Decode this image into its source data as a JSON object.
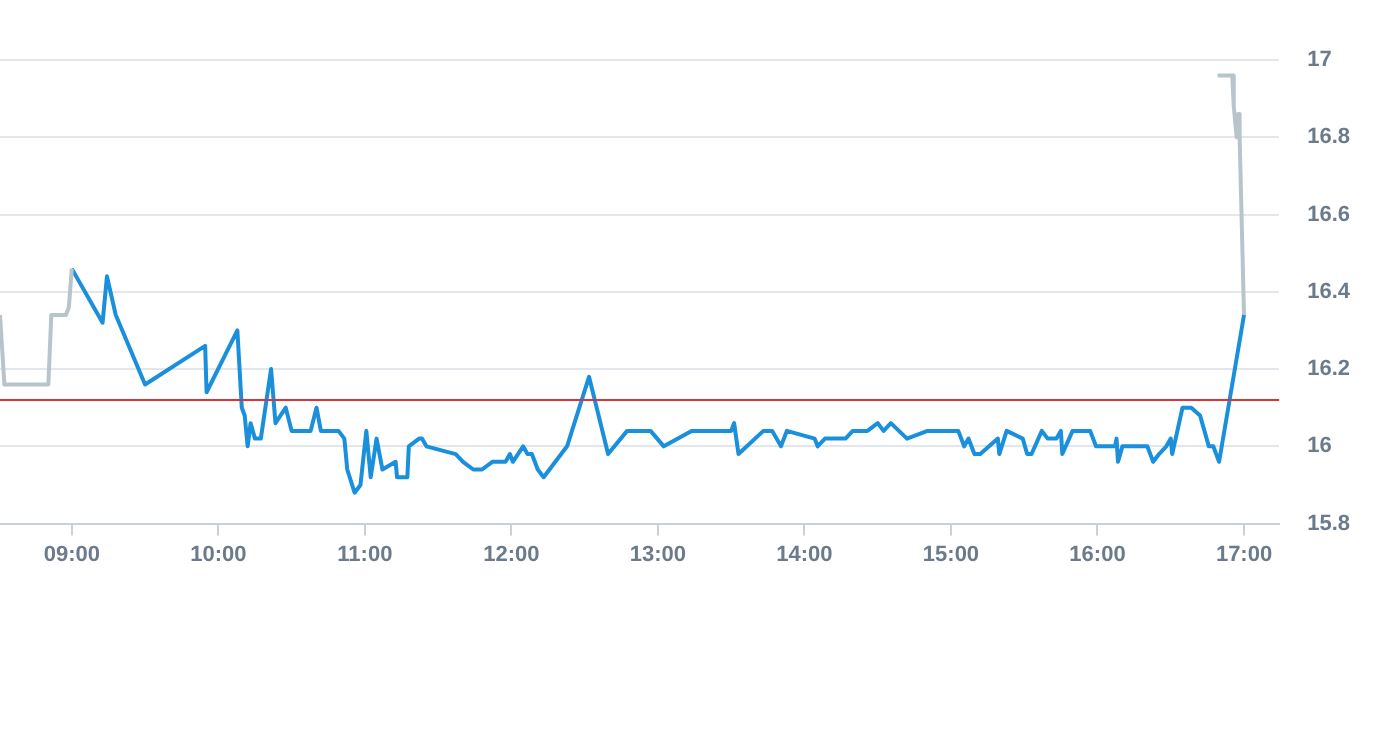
{
  "chart_data": {
    "type": "line",
    "marker": "none",
    "grid": "y",
    "legend": false,
    "xlim": [
      8.51,
      17.24
    ],
    "xticks": [
      {
        "value": 9,
        "label": "09:00"
      },
      {
        "value": 10,
        "label": "10:00"
      },
      {
        "value": 11,
        "label": "11:00"
      },
      {
        "value": 12,
        "label": "12:00"
      },
      {
        "value": 13,
        "label": "13:00"
      },
      {
        "value": 14,
        "label": "14:00"
      },
      {
        "value": 15,
        "label": "15:00"
      },
      {
        "value": 16,
        "label": "16:00"
      },
      {
        "value": 17,
        "label": "17:00"
      }
    ],
    "ylim": [
      15.8,
      17
    ],
    "yticks": [
      15.8,
      16,
      16.2,
      16.4,
      16.6,
      16.8,
      17
    ],
    "ref_lines": [
      {
        "axis": "y",
        "value": 16.12,
        "color": "#d9343a"
      }
    ],
    "series": [
      {
        "color": "#b8c4cc",
        "x": [
          8.51,
          8.54,
          8.84,
          8.86,
          8.96,
          8.98,
          9.0
        ],
        "values": [
          16.34,
          16.16,
          16.16,
          16.34,
          16.34,
          16.36,
          16.46
        ]
      },
      {
        "color": "#1a8fdc",
        "x": [
          9.0,
          9.21,
          9.24,
          9.3,
          9.5,
          9.91,
          9.92,
          10.13,
          10.16,
          10.18,
          10.2,
          10.22,
          10.25,
          10.29,
          10.36,
          10.39,
          10.46,
          10.5,
          10.63,
          10.67,
          10.7,
          10.82,
          10.86,
          10.88,
          10.93,
          10.97,
          11.01,
          11.04,
          11.08,
          11.12,
          11.21,
          11.22,
          11.29,
          11.3,
          11.37,
          11.39,
          11.42,
          11.62,
          11.67,
          11.74,
          11.8,
          11.87,
          11.96,
          11.99,
          12.01,
          12.08,
          12.11,
          12.14,
          12.18,
          12.22,
          12.38,
          12.53,
          12.66,
          12.79,
          12.95,
          13.04,
          13.23,
          13.5,
          13.52,
          13.55,
          13.72,
          13.78,
          13.84,
          13.88,
          14.07,
          14.09,
          14.14,
          14.28,
          14.33,
          14.43,
          14.5,
          14.54,
          14.59,
          14.7,
          14.84,
          15.05,
          15.09,
          15.12,
          15.16,
          15.2,
          15.32,
          15.33,
          15.38,
          15.49,
          15.52,
          15.55,
          15.62,
          15.66,
          15.72,
          15.75,
          15.76,
          15.83,
          15.95,
          15.99,
          16.01,
          16.12,
          16.13,
          16.14,
          16.17,
          16.34,
          16.38,
          16.42,
          16.47,
          16.5,
          16.51,
          16.58,
          16.64,
          16.7,
          16.76,
          16.79,
          16.83,
          17.0
        ],
        "values": [
          16.46,
          16.32,
          16.44,
          16.34,
          16.16,
          16.26,
          16.14,
          16.3,
          16.1,
          16.08,
          16.0,
          16.06,
          16.02,
          16.02,
          16.2,
          16.06,
          16.1,
          16.04,
          16.04,
          16.1,
          16.04,
          16.04,
          16.02,
          15.94,
          15.88,
          15.9,
          16.04,
          15.92,
          16.02,
          15.94,
          15.96,
          15.92,
          15.92,
          16.0,
          16.02,
          16.02,
          16.0,
          15.98,
          15.96,
          15.94,
          15.94,
          15.96,
          15.96,
          15.98,
          15.96,
          16.0,
          15.98,
          15.98,
          15.94,
          15.92,
          16.0,
          16.18,
          15.98,
          16.04,
          16.04,
          16.0,
          16.04,
          16.04,
          16.06,
          15.98,
          16.04,
          16.04,
          16.0,
          16.04,
          16.02,
          16.0,
          16.02,
          16.02,
          16.04,
          16.04,
          16.06,
          16.04,
          16.06,
          16.02,
          16.04,
          16.04,
          16.0,
          16.02,
          15.98,
          15.98,
          16.02,
          15.98,
          16.04,
          16.02,
          15.98,
          15.98,
          16.04,
          16.02,
          16.02,
          16.04,
          15.98,
          16.04,
          16.04,
          16.0,
          16.0,
          16.0,
          16.02,
          15.96,
          16.0,
          16.0,
          15.96,
          15.98,
          16.0,
          16.02,
          15.98,
          16.1,
          16.1,
          16.08,
          16.0,
          16.0,
          15.96,
          16.34
        ]
      },
      {
        "color": "#b8c4cc",
        "x": [
          16.82,
          16.92,
          16.93,
          16.95,
          16.96,
          16.97,
          17.0
        ],
        "values": [
          16.96,
          16.96,
          16.88,
          16.8,
          16.86,
          16.8,
          16.34
        ]
      }
    ]
  }
}
